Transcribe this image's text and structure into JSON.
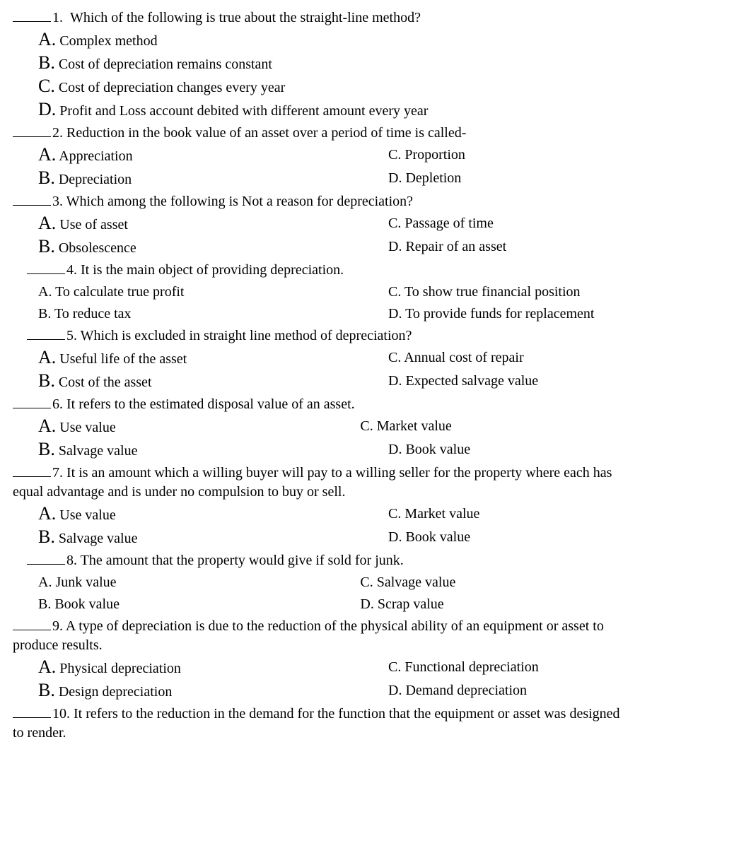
{
  "q1": {
    "num": "1.",
    "text": "Which of the following is true about the straight-line method?",
    "A": "Complex method",
    "B": "Cost of depreciation remains constant",
    "C": "Cost of depreciation changes every year",
    "D": "Profit and Loss account debited with different amount every year"
  },
  "q2": {
    "num": "2.",
    "text": "Reduction in the book value of an asset over a period of time is called-",
    "A": "Appreciation",
    "B": "Depreciation",
    "C": "C. Proportion",
    "D": "D. Depletion"
  },
  "q3": {
    "num": "3.",
    "text": "Which among the following is Not a reason for depreciation?",
    "A": "Use of asset",
    "B": "Obsolescence",
    "C": "C. Passage of time",
    "D": "D. Repair of an asset"
  },
  "q4": {
    "num": "4.",
    "text": "It is the main object of providing depreciation.",
    "A": "A. To calculate true profit",
    "B": "B. To reduce tax",
    "C": "C. To show true financial position",
    "D": "D. To provide funds for replacement"
  },
  "q5": {
    "num": "5.",
    "text": "Which is excluded in straight line method of depreciation?",
    "A": "Useful life of the asset",
    "B": "Cost of the asset",
    "C": "C. Annual cost of repair",
    "D": "D. Expected salvage value"
  },
  "q6": {
    "num": "6.",
    "text": "It refers to the estimated disposal value of an asset.",
    "A": "Use value",
    "B": "Salvage value",
    "C": "C. Market value",
    "D": "D.  Book value"
  },
  "q7": {
    "num": "7.",
    "text": "It is an amount which a willing buyer will pay to a willing seller for the property where each has",
    "text2": "equal advantage and is under no compulsion to buy or sell.",
    "A": "Use value",
    "B": "Salvage value",
    "C": "C. Market value",
    "D": "D.  Book value"
  },
  "q8": {
    "num": "8.",
    "text": "The amount that the property would give if sold for junk.",
    "A": "A. Junk value",
    "B": "B. Book value",
    "C": "C. Salvage value",
    "D": "D. Scrap value"
  },
  "q9": {
    "num": "9.",
    "text": "A type of depreciation is due to the reduction of the physical ability of an equipment or asset to",
    "text2": "produce results.",
    "A": "Physical depreciation",
    "B": "Design depreciation",
    "C": "C. Functional depreciation",
    "D": "D. Demand depreciation"
  },
  "q10": {
    "num": "10.",
    "text": "It refers to the reduction in the demand for the function that the equipment or asset was designed",
    "text2": "to render."
  },
  "letters": {
    "A": "A",
    "B": "B",
    "C": "C",
    "D": "D"
  }
}
